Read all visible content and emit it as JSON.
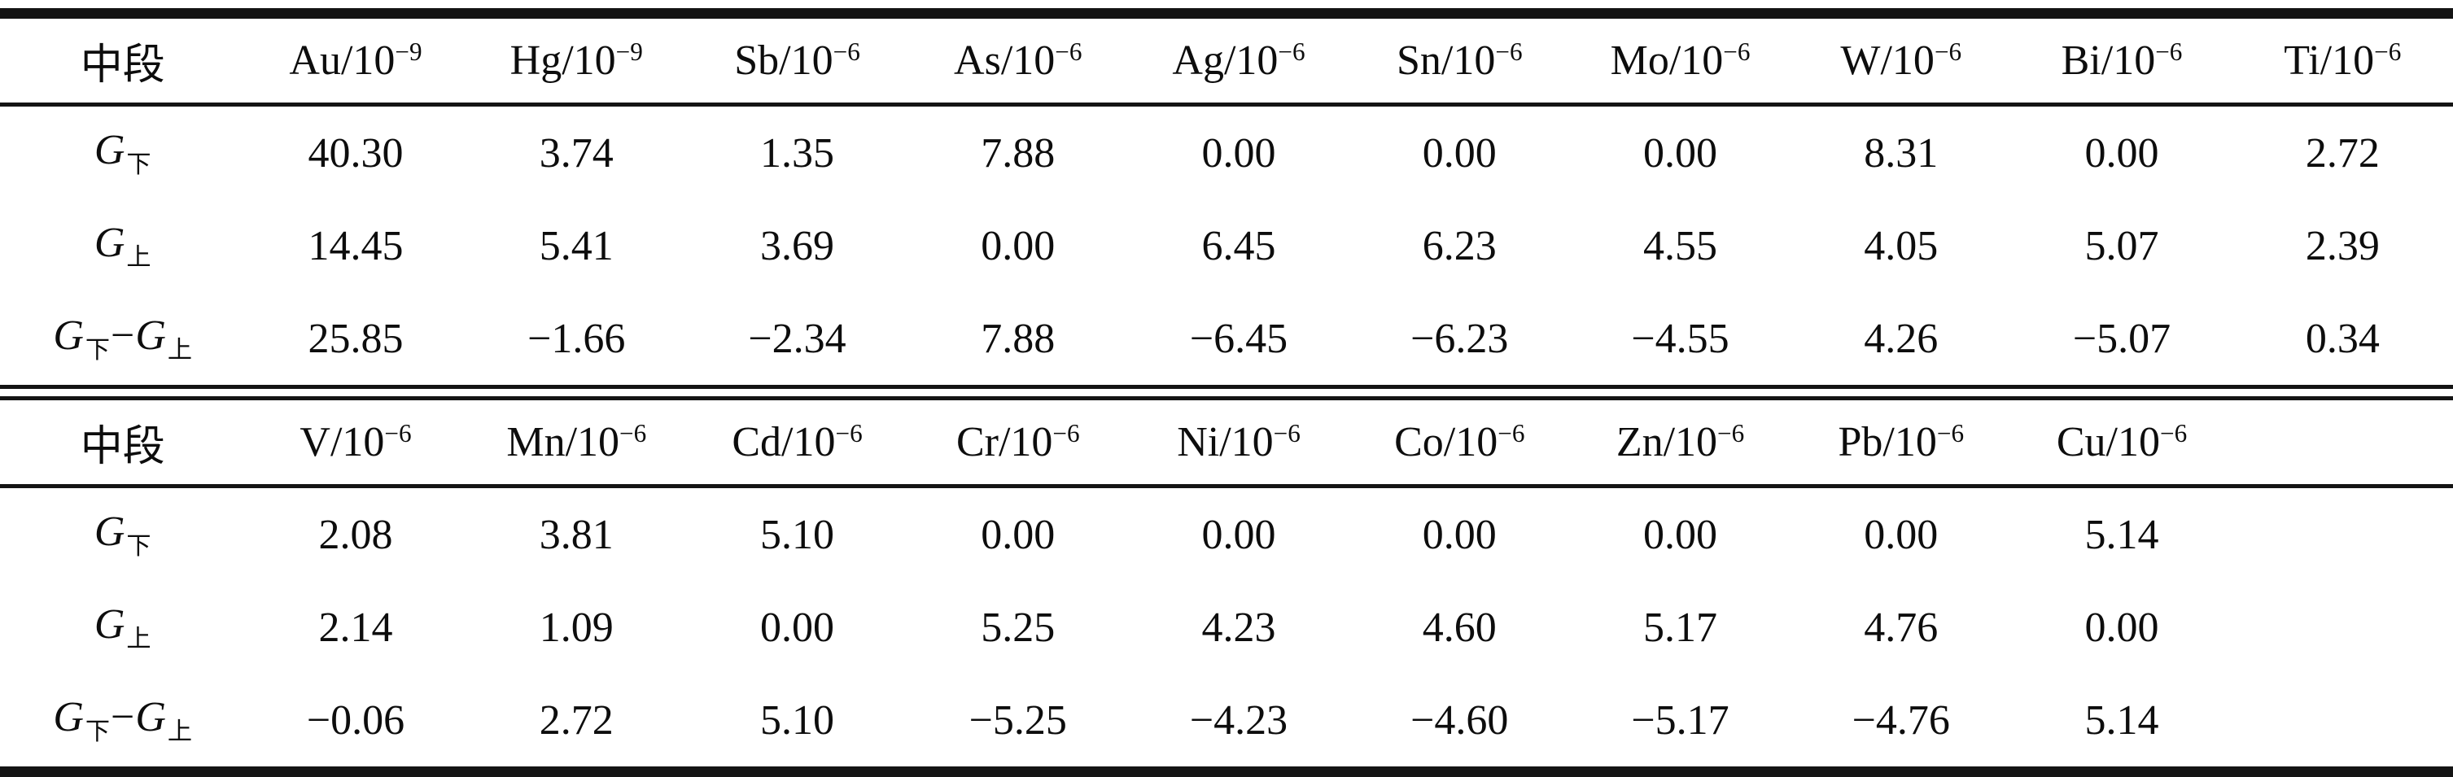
{
  "page": {
    "background_color": "#ffffff",
    "text_color": "#0d0d0d",
    "rule_color": "#141414"
  },
  "table": {
    "columns": 11,
    "sections": [
      {
        "header": [
          {
            "text": "中段",
            "sup": ""
          },
          {
            "text": "Au/10",
            "sup": "−9"
          },
          {
            "text": "Hg/10",
            "sup": "−9"
          },
          {
            "text": "Sb/10",
            "sup": "−6"
          },
          {
            "text": "As/10",
            "sup": "−6"
          },
          {
            "text": "Ag/10",
            "sup": "−6"
          },
          {
            "text": "Sn/10",
            "sup": "−6"
          },
          {
            "text": "Mo/10",
            "sup": "−6"
          },
          {
            "text": "W/10",
            "sup": "−6"
          },
          {
            "text": "Bi/10",
            "sup": "−6"
          },
          {
            "text": "Ti/10",
            "sup": "−6"
          }
        ],
        "rows": [
          {
            "label": [
              {
                "t": "G",
                "sub": "下"
              }
            ],
            "values": [
              "40.30",
              "3.74",
              "1.35",
              "7.88",
              "0.00",
              "0.00",
              "0.00",
              "8.31",
              "0.00",
              "2.72"
            ]
          },
          {
            "label": [
              {
                "t": "G",
                "sub": "上"
              }
            ],
            "values": [
              "14.45",
              "5.41",
              "3.69",
              "0.00",
              "6.45",
              "6.23",
              "4.55",
              "4.05",
              "5.07",
              "2.39"
            ]
          },
          {
            "label": [
              {
                "t": "G",
                "sub": "下"
              },
              {
                "t": "−"
              },
              {
                "t": "G",
                "sub": "上"
              }
            ],
            "values": [
              "25.85",
              "−1.66",
              "−2.34",
              "7.88",
              "−6.45",
              "−6.23",
              "−4.55",
              "4.26",
              "−5.07",
              "0.34"
            ]
          }
        ]
      },
      {
        "header": [
          {
            "text": "中段",
            "sup": ""
          },
          {
            "text": "V/10",
            "sup": "−6"
          },
          {
            "text": "Mn/10",
            "sup": "−6"
          },
          {
            "text": "Cd/10",
            "sup": "−6"
          },
          {
            "text": "Cr/10",
            "sup": "−6"
          },
          {
            "text": "Ni/10",
            "sup": "−6"
          },
          {
            "text": "Co/10",
            "sup": "−6"
          },
          {
            "text": "Zn/10",
            "sup": "−6"
          },
          {
            "text": "Pb/10",
            "sup": "−6"
          },
          {
            "text": "Cu/10",
            "sup": "−6"
          },
          {
            "text": "",
            "sup": ""
          }
        ],
        "rows": [
          {
            "label": [
              {
                "t": "G",
                "sub": "下"
              }
            ],
            "values": [
              "2.08",
              "3.81",
              "5.10",
              "0.00",
              "0.00",
              "0.00",
              "0.00",
              "0.00",
              "5.14",
              ""
            ]
          },
          {
            "label": [
              {
                "t": "G",
                "sub": "上"
              }
            ],
            "values": [
              "2.14",
              "1.09",
              "0.00",
              "5.25",
              "4.23",
              "4.60",
              "5.17",
              "4.76",
              "0.00",
              ""
            ]
          },
          {
            "label": [
              {
                "t": "G",
                "sub": "下"
              },
              {
                "t": "−"
              },
              {
                "t": "G",
                "sub": "上"
              }
            ],
            "values": [
              "−0.06",
              "2.72",
              "5.10",
              "−5.25",
              "−4.23",
              "−4.60",
              "−5.17",
              "−4.76",
              "5.14",
              ""
            ]
          }
        ]
      }
    ]
  }
}
